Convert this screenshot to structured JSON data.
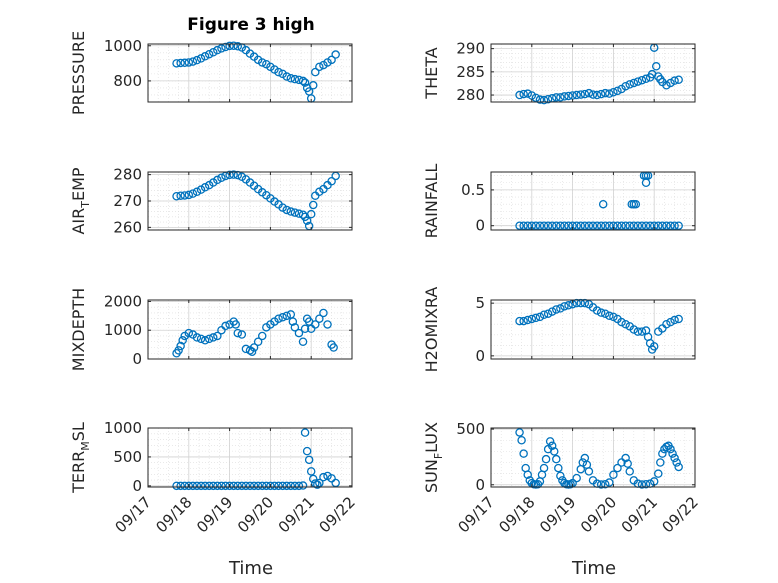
{
  "figure": {
    "title": "Figure 3 high",
    "xlabel": "Time",
    "x_tick_labels": [
      "09/17",
      "09/18",
      "09/19",
      "09/20",
      "09/21",
      "09/22"
    ],
    "marker_color": "#0072BD"
  },
  "chart_data": [
    {
      "type": "scatter",
      "title": "Figure 3 high",
      "ylabel_main": "PRESSURE",
      "ylabel_sub": "",
      "xlim": [
        0,
        5
      ],
      "ylim": [
        680,
        1010
      ],
      "yticks": [
        800,
        1000
      ],
      "grid": true,
      "x": [
        0.7,
        0.8,
        0.9,
        1.0,
        1.1,
        1.2,
        1.3,
        1.4,
        1.5,
        1.6,
        1.7,
        1.8,
        1.9,
        2.0,
        2.1,
        2.2,
        2.3,
        2.4,
        2.5,
        2.6,
        2.7,
        2.8,
        2.9,
        3.0,
        3.1,
        3.2,
        3.3,
        3.4,
        3.5,
        3.6,
        3.7,
        3.8,
        3.85,
        3.9,
        3.95,
        4.0,
        4.05,
        4.1,
        4.2,
        4.3,
        4.4,
        4.5,
        4.6
      ],
      "y": [
        900,
        902,
        903,
        905,
        910,
        918,
        928,
        940,
        952,
        963,
        975,
        985,
        993,
        999,
        1000,
        997,
        990,
        975,
        955,
        938,
        920,
        905,
        895,
        880,
        865,
        850,
        840,
        825,
        815,
        810,
        806,
        800,
        790,
        760,
        740,
        700,
        775,
        850,
        880,
        890,
        905,
        920,
        950
      ]
    },
    {
      "type": "scatter",
      "ylabel_main": "THETA",
      "ylabel_sub": "",
      "xlim": [
        0,
        5
      ],
      "ylim": [
        278.5,
        291
      ],
      "yticks": [
        280,
        285,
        290
      ],
      "grid": true,
      "x": [
        0.7,
        0.8,
        0.9,
        1.0,
        1.1,
        1.2,
        1.3,
        1.4,
        1.5,
        1.6,
        1.7,
        1.8,
        1.9,
        2.0,
        2.1,
        2.2,
        2.3,
        2.4,
        2.5,
        2.6,
        2.7,
        2.8,
        2.9,
        3.0,
        3.1,
        3.2,
        3.3,
        3.4,
        3.5,
        3.6,
        3.7,
        3.8,
        3.9,
        3.95,
        4.0,
        4.05,
        4.1,
        4.15,
        4.2,
        4.3,
        4.4,
        4.5,
        4.6
      ],
      "y": [
        280.0,
        280.2,
        280.3,
        279.9,
        279.4,
        279.0,
        278.9,
        279.1,
        279.3,
        279.5,
        279.5,
        279.7,
        279.8,
        279.9,
        280.0,
        280.1,
        280.2,
        280.4,
        280.1,
        280.0,
        280.2,
        280.4,
        280.3,
        280.6,
        280.9,
        281.3,
        281.9,
        282.3,
        282.6,
        282.9,
        283.2,
        283.5,
        283.8,
        284.5,
        290.2,
        286.2,
        284.0,
        283.4,
        282.8,
        282.1,
        282.6,
        283.1,
        283.3
      ]
    },
    {
      "type": "scatter",
      "ylabel_main": "AIR",
      "ylabel_sub": "T",
      "ylabel_tail": "EMP",
      "xlim": [
        0,
        5
      ],
      "ylim": [
        259,
        281
      ],
      "yticks": [
        260,
        270,
        280
      ],
      "grid": true,
      "x": [
        0.7,
        0.8,
        0.9,
        1.0,
        1.1,
        1.2,
        1.3,
        1.4,
        1.5,
        1.6,
        1.7,
        1.8,
        1.9,
        2.0,
        2.1,
        2.2,
        2.3,
        2.4,
        2.5,
        2.6,
        2.7,
        2.8,
        2.9,
        3.0,
        3.1,
        3.2,
        3.3,
        3.4,
        3.5,
        3.6,
        3.7,
        3.8,
        3.85,
        3.9,
        3.95,
        4.0,
        4.05,
        4.1,
        4.2,
        4.3,
        4.4,
        4.5,
        4.6
      ],
      "y": [
        271.8,
        272.0,
        272.1,
        272.3,
        272.8,
        273.5,
        274.3,
        275.2,
        276.0,
        277.0,
        278.0,
        278.8,
        279.5,
        279.9,
        280.0,
        279.8,
        279.2,
        278.2,
        277.0,
        275.8,
        274.5,
        273.3,
        272.2,
        271.0,
        269.8,
        268.7,
        267.5,
        266.6,
        266.0,
        265.6,
        265.2,
        264.8,
        264.0,
        262.5,
        260.5,
        265.0,
        268.5,
        272.0,
        273.5,
        274.5,
        276.0,
        277.5,
        279.5
      ]
    },
    {
      "type": "scatter",
      "ylabel_main": "RAINFALL",
      "ylabel_sub": "",
      "xlim": [
        0,
        5
      ],
      "ylim": [
        -0.06,
        0.75
      ],
      "yticks": [
        0,
        0.5
      ],
      "grid": true,
      "x": [
        0.7,
        0.8,
        0.9,
        1.0,
        1.1,
        1.2,
        1.3,
        1.4,
        1.5,
        1.6,
        1.7,
        1.8,
        1.9,
        2.0,
        2.1,
        2.2,
        2.3,
        2.4,
        2.5,
        2.6,
        2.7,
        2.8,
        2.9,
        3.0,
        3.1,
        3.2,
        3.3,
        3.4,
        3.5,
        3.6,
        3.7,
        3.8,
        3.9,
        4.0,
        4.1,
        4.2,
        4.3,
        4.4,
        4.5,
        4.6,
        2.75,
        3.45,
        3.5,
        3.55,
        3.75,
        3.8,
        3.85,
        3.8
      ],
      "y": [
        0,
        0,
        0,
        0,
        0,
        0,
        0,
        0,
        0,
        0,
        0,
        0,
        0,
        0,
        0,
        0,
        0,
        0,
        0,
        0,
        0,
        0,
        0,
        0,
        0,
        0,
        0,
        0,
        0,
        0,
        0,
        0,
        0,
        0,
        0,
        0,
        0,
        0,
        0,
        0,
        0.3,
        0.3,
        0.3,
        0.3,
        0.7,
        0.7,
        0.7,
        0.6
      ]
    },
    {
      "type": "scatter",
      "ylabel_main": "MIXDEPTH",
      "ylabel_sub": "",
      "xlim": [
        0,
        5
      ],
      "ylim": [
        0,
        2050
      ],
      "yticks": [
        0,
        1000,
        2000
      ],
      "grid": true,
      "x": [
        0.7,
        0.75,
        0.8,
        0.85,
        0.9,
        1.0,
        1.1,
        1.2,
        1.3,
        1.4,
        1.5,
        1.6,
        1.7,
        1.8,
        1.9,
        2.0,
        2.1,
        2.15,
        2.2,
        2.3,
        2.4,
        2.5,
        2.55,
        2.6,
        2.7,
        2.8,
        2.9,
        3.0,
        3.1,
        3.2,
        3.3,
        3.4,
        3.5,
        3.55,
        3.6,
        3.7,
        3.8,
        3.85,
        3.9,
        3.95,
        4.0,
        4.1,
        4.2,
        4.3,
        4.4,
        4.5,
        4.55
      ],
      "y": [
        200,
        300,
        450,
        650,
        800,
        900,
        850,
        750,
        700,
        650,
        700,
        750,
        800,
        1000,
        1150,
        1200,
        1300,
        1200,
        900,
        850,
        350,
        300,
        250,
        400,
        600,
        800,
        1100,
        1200,
        1300,
        1400,
        1450,
        1500,
        1550,
        1300,
        1100,
        900,
        600,
        1050,
        1400,
        1300,
        1050,
        1200,
        1400,
        1600,
        1200,
        500,
        400
      ]
    },
    {
      "type": "scatter",
      "ylabel_main": "H2OMIXRA",
      "ylabel_sub": "",
      "xlim": [
        0,
        5
      ],
      "ylim": [
        -0.3,
        5.3
      ],
      "yticks": [
        0,
        5
      ],
      "grid": true,
      "x": [
        0.7,
        0.8,
        0.9,
        1.0,
        1.1,
        1.2,
        1.3,
        1.4,
        1.5,
        1.6,
        1.7,
        1.8,
        1.9,
        2.0,
        2.1,
        2.2,
        2.3,
        2.4,
        2.5,
        2.6,
        2.7,
        2.8,
        2.9,
        3.0,
        3.1,
        3.2,
        3.3,
        3.4,
        3.5,
        3.6,
        3.7,
        3.8,
        3.85,
        3.9,
        3.95,
        4.0,
        4.1,
        4.2,
        4.3,
        4.4,
        4.5,
        4.6
      ],
      "y": [
        3.3,
        3.3,
        3.4,
        3.5,
        3.6,
        3.7,
        3.9,
        4.0,
        4.2,
        4.4,
        4.5,
        4.7,
        4.8,
        4.9,
        5.0,
        5.0,
        5.0,
        4.9,
        4.6,
        4.3,
        4.1,
        4.0,
        3.8,
        3.7,
        3.5,
        3.2,
        3.0,
        2.8,
        2.5,
        2.3,
        2.3,
        2.4,
        1.8,
        1.2,
        0.6,
        0.9,
        2.3,
        2.6,
        3.0,
        3.2,
        3.4,
        3.5
      ]
    },
    {
      "type": "scatter",
      "ylabel_main": "TERR",
      "ylabel_sub": "M",
      "ylabel_tail": "SL",
      "xlim": [
        0,
        5
      ],
      "ylim": [
        -20,
        1000
      ],
      "yticks": [
        0,
        500,
        1000
      ],
      "grid": true,
      "x": [
        0.7,
        0.8,
        0.9,
        1.0,
        1.1,
        1.2,
        1.3,
        1.4,
        1.5,
        1.6,
        1.7,
        1.8,
        1.9,
        2.0,
        2.1,
        2.2,
        2.3,
        2.4,
        2.5,
        2.6,
        2.7,
        2.8,
        2.9,
        3.0,
        3.1,
        3.2,
        3.3,
        3.4,
        3.5,
        3.6,
        3.7,
        3.8,
        3.85,
        3.9,
        3.95,
        4.0,
        4.05,
        4.1,
        4.15,
        4.2,
        4.3,
        4.4,
        4.5,
        4.6
      ],
      "y": [
        0,
        0,
        0,
        0,
        0,
        0,
        0,
        0,
        0,
        0,
        0,
        0,
        0,
        0,
        0,
        0,
        0,
        0,
        0,
        0,
        0,
        0,
        0,
        0,
        0,
        0,
        0,
        0,
        0,
        0,
        0,
        5,
        920,
        600,
        450,
        250,
        120,
        40,
        20,
        50,
        150,
        170,
        130,
        50
      ]
    },
    {
      "type": "scatter",
      "ylabel_main": "SUN",
      "ylabel_sub": "F",
      "ylabel_tail": "LUX",
      "xlim": [
        0,
        5
      ],
      "ylim": [
        -20,
        510
      ],
      "yticks": [
        0,
        500
      ],
      "grid": true,
      "x": [
        0.7,
        0.75,
        0.8,
        0.85,
        0.9,
        0.95,
        1.0,
        1.05,
        1.1,
        1.15,
        1.2,
        1.25,
        1.3,
        1.35,
        1.4,
        1.45,
        1.5,
        1.55,
        1.6,
        1.65,
        1.7,
        1.75,
        1.8,
        1.85,
        1.9,
        1.95,
        2.0,
        2.1,
        2.2,
        2.25,
        2.3,
        2.35,
        2.4,
        2.5,
        2.6,
        2.7,
        2.8,
        2.9,
        3.0,
        3.1,
        3.2,
        3.3,
        3.35,
        3.4,
        3.5,
        3.6,
        3.7,
        3.8,
        3.9,
        4.0,
        4.1,
        4.15,
        4.2,
        4.25,
        4.3,
        4.35,
        4.4,
        4.45,
        4.5,
        4.55,
        4.6
      ],
      "y": [
        470,
        400,
        280,
        150,
        90,
        40,
        15,
        5,
        2,
        5,
        30,
        90,
        150,
        230,
        320,
        390,
        350,
        300,
        230,
        150,
        80,
        40,
        15,
        5,
        2,
        5,
        15,
        60,
        140,
        200,
        240,
        180,
        120,
        40,
        10,
        2,
        5,
        20,
        90,
        150,
        200,
        240,
        190,
        120,
        40,
        10,
        2,
        5,
        10,
        30,
        100,
        200,
        280,
        320,
        340,
        350,
        320,
        280,
        240,
        200,
        160
      ]
    }
  ]
}
